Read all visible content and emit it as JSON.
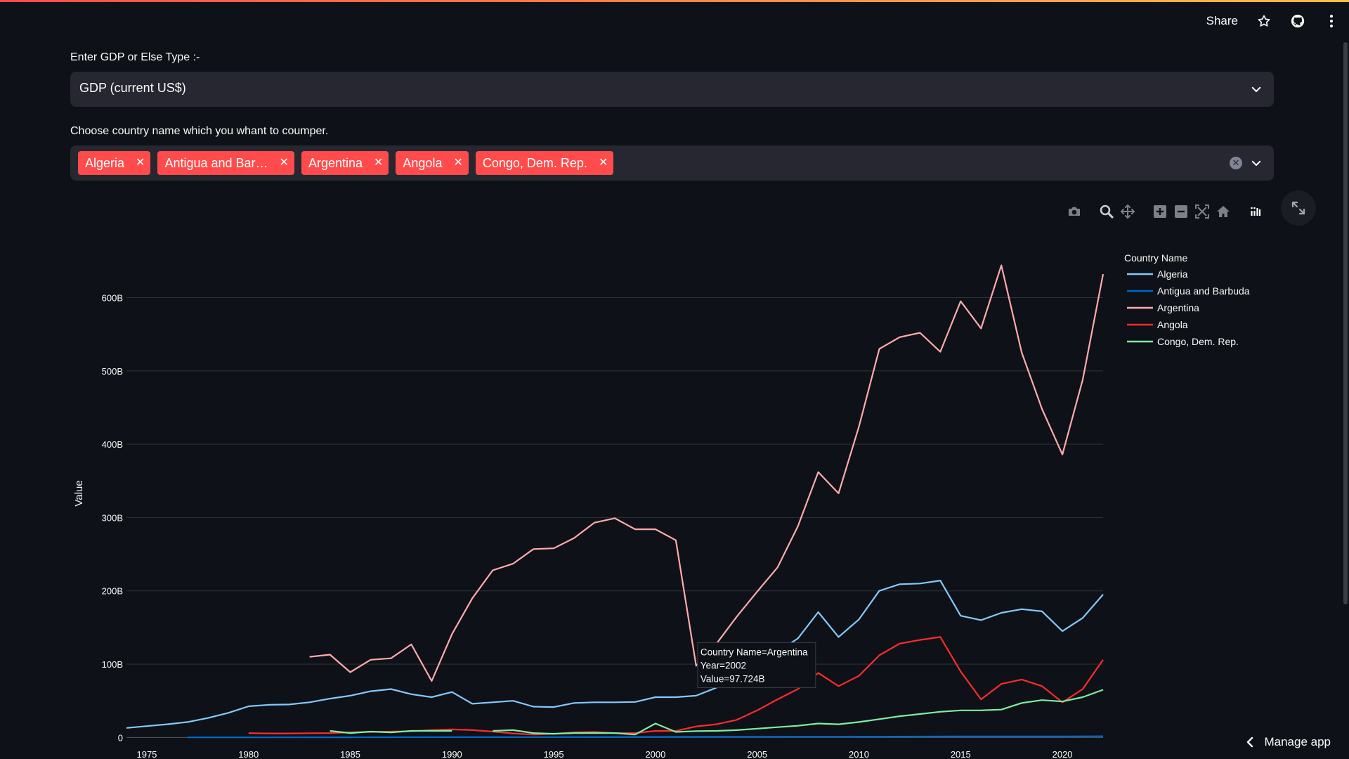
{
  "header": {
    "share_label": "Share",
    "icons": [
      "star-icon",
      "github-icon",
      "more-vertical-icon"
    ]
  },
  "type_select": {
    "label": "Enter GDP or Else Type :-",
    "value": "GDP (current US$)"
  },
  "country_select": {
    "label": "Choose country name which you whant to coumper.",
    "tags": [
      "Algeria",
      "Antigua and Bar…",
      "Argentina",
      "Angola",
      "Congo, Dem. Rep."
    ]
  },
  "modebar": [
    "camera-icon",
    "zoom-icon",
    "pan-icon",
    "zoom-in-icon",
    "zoom-out-icon",
    "autoscale-icon",
    "reset-axes-icon",
    "plotly-logo-icon"
  ],
  "chart_data": {
    "type": "line",
    "ylabel": "Value",
    "xlabel": "",
    "legend_title": "Country Name",
    "legend_position": "right",
    "grid": true,
    "xlim": [
      1974,
      2022
    ],
    "ylim": [
      -15,
      680
    ],
    "x_ticks": [
      "1975",
      "1980",
      "1985",
      "1990",
      "1995",
      "2000",
      "2005",
      "2010",
      "2015",
      "2020"
    ],
    "x_tick_values": [
      1975,
      1980,
      1985,
      1990,
      1995,
      2000,
      2005,
      2010,
      2015,
      2020
    ],
    "y_ticks": [
      "0",
      "100B",
      "200B",
      "300B",
      "400B",
      "500B",
      "600B"
    ],
    "y_tick_values": [
      0,
      100,
      200,
      300,
      400,
      500,
      600
    ],
    "series": [
      {
        "name": "Algeria",
        "color": "#83c9ff",
        "x": [
          1974,
          1975,
          1976,
          1977,
          1978,
          1979,
          1980,
          1981,
          1982,
          1983,
          1984,
          1985,
          1986,
          1987,
          1988,
          1989,
          1990,
          1991,
          1992,
          1993,
          1994,
          1995,
          1996,
          1997,
          1998,
          1999,
          2000,
          2001,
          2002,
          2003,
          2004,
          2005,
          2006,
          2007,
          2008,
          2009,
          2010,
          2011,
          2012,
          2013,
          2014,
          2015,
          2016,
          2017,
          2018,
          2019,
          2020,
          2021,
          2022
        ],
        "y": [
          13,
          15.5,
          18,
          21,
          26.5,
          33.5,
          42.5,
          44.5,
          45,
          48,
          53,
          57,
          63,
          66,
          59,
          55,
          62,
          46,
          48,
          50,
          42,
          41.5,
          47,
          48,
          48,
          48.5,
          55,
          55,
          57,
          68,
          85,
          103,
          117,
          135,
          171,
          137,
          161,
          200,
          209,
          210,
          214,
          166,
          160,
          170,
          175,
          172,
          145,
          163,
          195
        ]
      },
      {
        "name": "Antigua and Barbuda",
        "color": "#0068c9",
        "x": [
          1977,
          1980,
          1985,
          1990,
          1995,
          2000,
          2005,
          2010,
          2015,
          2020,
          2022
        ],
        "y": [
          0.1,
          0.13,
          0.22,
          0.4,
          0.5,
          0.8,
          1,
          1.15,
          1.35,
          1.4,
          1.7
        ]
      },
      {
        "name": "Argentina",
        "color": "#ffabab",
        "x": [
          1983,
          1984,
          1985,
          1986,
          1987,
          1988,
          1989,
          1990,
          1991,
          1992,
          1993,
          1994,
          1995,
          1996,
          1997,
          1998,
          1999,
          2000,
          2001,
          2002,
          2003,
          2004,
          2005,
          2006,
          2007,
          2008,
          2009,
          2010,
          2011,
          2012,
          2013,
          2014,
          2015,
          2016,
          2017,
          2018,
          2019,
          2020,
          2021,
          2022
        ],
        "y": [
          110,
          113,
          89,
          106,
          108,
          127,
          77,
          141,
          190,
          228,
          237,
          257,
          258,
          272,
          293,
          299,
          284,
          284,
          269,
          97.724,
          128,
          165,
          199,
          232,
          288,
          362,
          333,
          424,
          530,
          546,
          552,
          526,
          595,
          558,
          644,
          525,
          448,
          386,
          488,
          632
        ]
      },
      {
        "name": "Angola",
        "color": "#ff2b2b",
        "x": [
          1980,
          1981,
          1982,
          1983,
          1984,
          1985,
          1986,
          1987,
          1988,
          1989,
          1990,
          1991,
          1992,
          1993,
          1994,
          1995,
          1996,
          1997,
          1998,
          1999,
          2000,
          2001,
          2002,
          2003,
          2004,
          2005,
          2006,
          2007,
          2008,
          2009,
          2010,
          2011,
          2012,
          2013,
          2014,
          2015,
          2016,
          2017,
          2018,
          2019,
          2020,
          2021,
          2022
        ],
        "y": [
          5.9,
          5.5,
          5.5,
          5.8,
          6,
          7,
          7.5,
          8,
          8.5,
          10,
          11,
          10,
          8,
          5.5,
          4,
          5,
          7,
          7.5,
          6,
          6,
          9,
          8.9,
          15,
          18,
          24,
          37,
          52,
          66,
          88,
          70,
          84,
          112,
          128,
          133,
          137,
          90,
          52,
          73,
          79,
          70,
          48,
          66,
          106
        ]
      },
      {
        "name": "Congo, Dem. Rep.",
        "color": "#7defa1",
        "x": [
          1984,
          1985,
          1986,
          1987,
          1988,
          1989,
          1990,
          null,
          1992,
          1993,
          1994,
          1995,
          1996,
          1997,
          1998,
          1999,
          2000,
          2001,
          2002,
          2003,
          2004,
          2005,
          2006,
          2007,
          2008,
          2009,
          2010,
          2011,
          2012,
          2013,
          2014,
          2015,
          2016,
          2017,
          2018,
          2019,
          2020,
          2021,
          2022
        ],
        "y": [
          9,
          6,
          8,
          7,
          9,
          9,
          9,
          null,
          9,
          10,
          6,
          5,
          6,
          6,
          6,
          4,
          19,
          7.5,
          8.7,
          9,
          10,
          12,
          14,
          16,
          19,
          18,
          21,
          25,
          29,
          32,
          35,
          37,
          37,
          38,
          47,
          51,
          49,
          55,
          65
        ]
      }
    ],
    "tooltip": {
      "lines": [
        "Country Name=Argentina",
        "Year=2002",
        "Value=97.724B"
      ]
    }
  },
  "footer": {
    "manage_app_label": "Manage app"
  }
}
